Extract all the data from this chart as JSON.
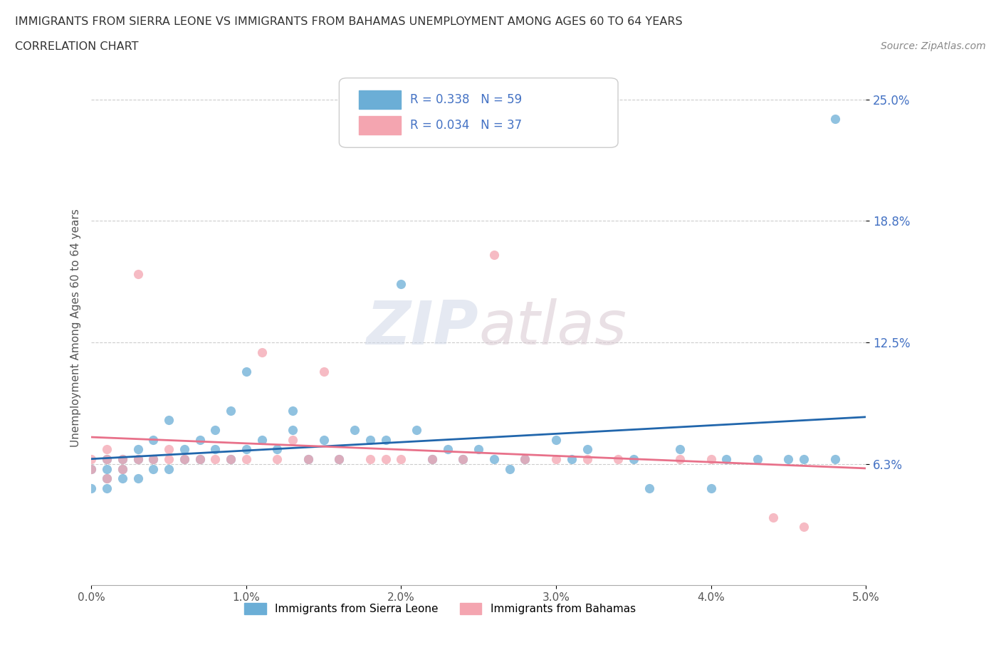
{
  "title_line1": "IMMIGRANTS FROM SIERRA LEONE VS IMMIGRANTS FROM BAHAMAS UNEMPLOYMENT AMONG AGES 60 TO 64 YEARS",
  "title_line2": "CORRELATION CHART",
  "source_text": "Source: ZipAtlas.com",
  "ylabel": "Unemployment Among Ages 60 to 64 years",
  "legend_label_1": "Immigrants from Sierra Leone",
  "legend_label_2": "Immigrants from Bahamas",
  "R1": 0.338,
  "N1": 59,
  "R2": 0.034,
  "N2": 37,
  "color_sierra": "#6baed6",
  "color_bahamas": "#f4a5b0",
  "trend_color_sierra": "#2166ac",
  "trend_color_bahamas": "#e8718a",
  "watermark_zip": "ZIP",
  "watermark_atlas": "atlas",
  "xmin": 0.0,
  "xmax": 0.05,
  "ymin": 0.0,
  "ymax": 0.265,
  "yticks": [
    0.0625,
    0.125,
    0.1875,
    0.25
  ],
  "ytick_labels": [
    "6.3%",
    "12.5%",
    "18.8%",
    "25.0%"
  ],
  "xticks": [
    0.0,
    0.01,
    0.02,
    0.03,
    0.04,
    0.05
  ],
  "xtick_labels": [
    "0.0%",
    "1.0%",
    "2.0%",
    "3.0%",
    "4.0%",
    "5.0%"
  ],
  "sierra_leone_x": [
    0.0,
    0.0,
    0.001,
    0.001,
    0.001,
    0.001,
    0.002,
    0.002,
    0.002,
    0.003,
    0.003,
    0.003,
    0.004,
    0.004,
    0.004,
    0.005,
    0.005,
    0.006,
    0.006,
    0.007,
    0.007,
    0.008,
    0.008,
    0.009,
    0.009,
    0.01,
    0.01,
    0.011,
    0.012,
    0.013,
    0.013,
    0.014,
    0.015,
    0.016,
    0.017,
    0.018,
    0.019,
    0.02,
    0.021,
    0.022,
    0.023,
    0.024,
    0.025,
    0.026,
    0.027,
    0.028,
    0.03,
    0.031,
    0.032,
    0.035,
    0.036,
    0.038,
    0.04,
    0.041,
    0.043,
    0.045,
    0.046,
    0.048,
    0.048
  ],
  "sierra_leone_y": [
    0.05,
    0.06,
    0.05,
    0.055,
    0.06,
    0.065,
    0.055,
    0.06,
    0.065,
    0.055,
    0.065,
    0.07,
    0.06,
    0.065,
    0.075,
    0.06,
    0.085,
    0.065,
    0.07,
    0.065,
    0.075,
    0.07,
    0.08,
    0.09,
    0.065,
    0.07,
    0.11,
    0.075,
    0.07,
    0.08,
    0.09,
    0.065,
    0.075,
    0.065,
    0.08,
    0.075,
    0.075,
    0.155,
    0.08,
    0.065,
    0.07,
    0.065,
    0.07,
    0.065,
    0.06,
    0.065,
    0.075,
    0.065,
    0.07,
    0.065,
    0.05,
    0.07,
    0.05,
    0.065,
    0.065,
    0.065,
    0.065,
    0.065,
    0.24
  ],
  "bahamas_x": [
    0.0,
    0.0,
    0.001,
    0.001,
    0.001,
    0.002,
    0.002,
    0.003,
    0.003,
    0.004,
    0.005,
    0.005,
    0.006,
    0.007,
    0.008,
    0.009,
    0.01,
    0.011,
    0.012,
    0.013,
    0.014,
    0.015,
    0.016,
    0.018,
    0.019,
    0.02,
    0.022,
    0.024,
    0.026,
    0.028,
    0.03,
    0.032,
    0.034,
    0.038,
    0.04,
    0.044,
    0.046
  ],
  "bahamas_y": [
    0.06,
    0.065,
    0.055,
    0.065,
    0.07,
    0.06,
    0.065,
    0.065,
    0.16,
    0.065,
    0.065,
    0.07,
    0.065,
    0.065,
    0.065,
    0.065,
    0.065,
    0.12,
    0.065,
    0.075,
    0.065,
    0.11,
    0.065,
    0.065,
    0.065,
    0.065,
    0.065,
    0.065,
    0.17,
    0.065,
    0.065,
    0.065,
    0.065,
    0.065,
    0.065,
    0.035,
    0.03
  ]
}
